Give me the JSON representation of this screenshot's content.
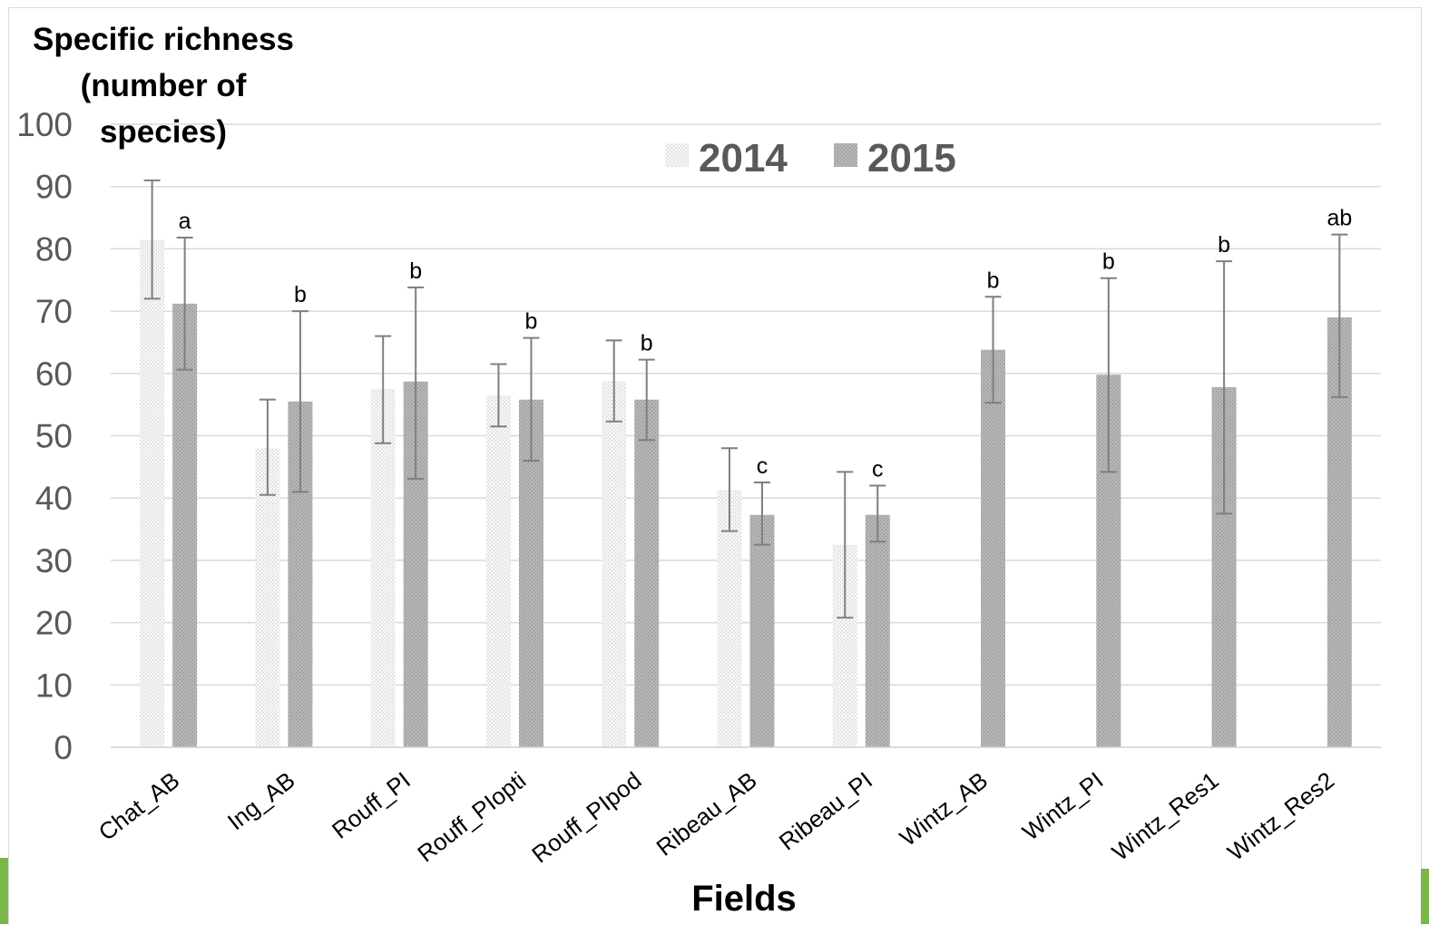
{
  "chart_data": {
    "type": "bar",
    "ylabel_lines": [
      "Specific richness",
      "(number of",
      "species)"
    ],
    "xlabel": "Fields",
    "ylim": [
      0,
      100
    ],
    "yticks": [
      0,
      10,
      20,
      30,
      40,
      50,
      60,
      70,
      80,
      90,
      100
    ],
    "grid": true,
    "legend_position": "top",
    "categories": [
      "Chat_AB",
      "Ing_AB",
      "Rouff_PI",
      "Rouff_PIopti",
      "Rouff_PIpod",
      "Ribeau_AB",
      "Ribeau_PI",
      "Wintz_AB",
      "Wintz_PI",
      "Wintz_Res1",
      "Wintz_Res2"
    ],
    "series": [
      {
        "name": "2014",
        "color": "#ebebeb",
        "values": [
          81.5,
          48,
          57.5,
          56.5,
          58.8,
          41.3,
          32.5,
          null,
          null,
          null,
          null
        ],
        "err_low": [
          72,
          40.5,
          48.8,
          51.5,
          52.3,
          34.7,
          20.8,
          null,
          null,
          null,
          null
        ],
        "err_high": [
          91,
          55.8,
          66,
          61.5,
          65.3,
          48,
          44.2,
          null,
          null,
          null,
          null
        ]
      },
      {
        "name": "2015",
        "color": "#a6a6a6",
        "values": [
          71.2,
          55.5,
          58.7,
          55.8,
          55.8,
          37.3,
          37.3,
          63.8,
          59.8,
          57.8,
          69
        ],
        "err_low": [
          60.6,
          41,
          43.1,
          46,
          49.3,
          32.5,
          33,
          55.3,
          44.2,
          37.5,
          56.2
        ],
        "err_high": [
          81.8,
          70,
          73.8,
          65.7,
          62.2,
          42.5,
          42,
          72.3,
          75.3,
          78,
          82.3
        ]
      }
    ],
    "significance_letters": [
      "a",
      "b",
      "b",
      "b",
      "b",
      "c",
      "c",
      "b",
      "b",
      "b",
      "ab"
    ]
  }
}
